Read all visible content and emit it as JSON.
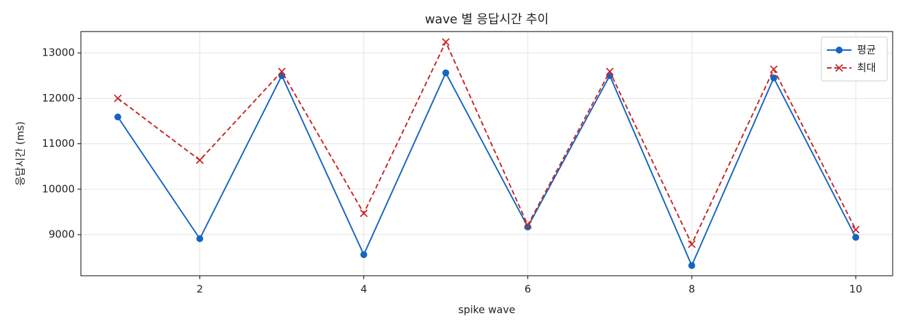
{
  "chart_data": {
    "type": "line",
    "title": "wave 별 응답시간 추이",
    "x_label": "spike wave",
    "y_label": "응답시간 (ms)",
    "x": [
      1,
      2,
      3,
      4,
      5,
      6,
      7,
      8,
      9,
      10
    ],
    "series": [
      {
        "name": "평균",
        "color": "#1565c0",
        "marker": "circle",
        "linestyle": "solid",
        "values": [
          11590,
          8910,
          12500,
          8560,
          12560,
          9170,
          12500,
          8320,
          12450,
          8940
        ]
      },
      {
        "name": "최대",
        "color": "#c62828",
        "marker": "x",
        "linestyle": "dashed",
        "values": [
          12000,
          10640,
          12590,
          9470,
          13240,
          9210,
          12590,
          8790,
          12640,
          9110
        ]
      }
    ],
    "xlim": [
      0.55,
      10.45
    ],
    "ylim": [
      8095,
      13470
    ],
    "xticks": [
      2,
      4,
      6,
      8,
      10
    ],
    "yticks": [
      9000,
      10000,
      11000,
      12000,
      13000
    ],
    "grid": true,
    "legend": "upper right"
  }
}
